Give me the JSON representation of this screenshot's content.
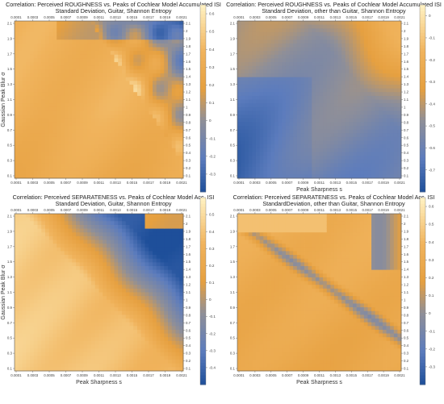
{
  "chart_data": [
    {
      "type": "heatmap",
      "title": "Correlation: Perceived ROUGHNESS vs. Peaks of Cochlear Model Accumulated ISI",
      "subtitle": "Standard Deviation, Guitar, Shannon Entropy",
      "xlabel": "",
      "ylabel": "Gaussian Peak Blur σ",
      "x_ticks": [
        "0.0001",
        "0.0003",
        "0.0005",
        "0.0007",
        "0.0009",
        "0.0011",
        "0.0013",
        "0.0015",
        "0.0017",
        "0.0019",
        "0.0021"
      ],
      "y_ticks": [
        "2.1",
        "1.9",
        "1.7",
        "1.5",
        "1.3",
        "1.1",
        "0.9",
        "0.7",
        "0.5",
        "0.3",
        "0.1"
      ],
      "y_ticks_right": [
        "2.1",
        "2",
        "1.9",
        "1.8",
        "1.7",
        "1.6",
        "1.5",
        "1.4",
        "1.3",
        "1.2",
        "1.1",
        "1",
        "0.9",
        "0.8",
        "0.7",
        "0.6",
        "0.5",
        "0.4",
        "0.3",
        "0.2",
        "0.1"
      ],
      "colorbar_ticks": [
        "0.6",
        "0.5",
        "0.4",
        "0.3",
        "0.2",
        "0.1",
        "0",
        "-0.1",
        "-0.2",
        "-0.3"
      ],
      "colorbar_range": [
        -0.4,
        0.65
      ]
    },
    {
      "type": "heatmap",
      "title": "Correlation: Perceived ROUGHNESS vs. Peaks of Cochlear Model Accumulated ISI",
      "subtitle": "Standard Deviation, other than Guitar, Shannon Entropy",
      "xlabel": "Peak Sharpness s",
      "ylabel": "",
      "x_ticks": [
        "0.0001",
        "0.0003",
        "0.0005",
        "0.0007",
        "0.0009",
        "0.0011",
        "0.0013",
        "0.0015",
        "0.0017",
        "0.0019",
        "0.0021"
      ],
      "y_ticks": [
        "2.1",
        "1.9",
        "1.7",
        "1.5",
        "1.3",
        "1.1",
        "0.9",
        "0.7",
        "0.5",
        "0.3",
        "0.1"
      ],
      "y_ticks_right": [
        "2.1",
        "2",
        "1.9",
        "1.8",
        "1.7",
        "1.6",
        "1.5",
        "1.4",
        "1.3",
        "1.2",
        "1.1",
        "1",
        "0.9",
        "0.8",
        "0.7",
        "0.6",
        "0.5",
        "0.4",
        "0.3",
        "0.2",
        "0.1"
      ],
      "colorbar_ticks": [
        "0",
        "-0.1",
        "-0.2",
        "-0.3",
        "-0.4",
        "-0.5",
        "-0.6",
        "-0.7"
      ],
      "colorbar_range": [
        -0.8,
        0.05
      ]
    },
    {
      "type": "heatmap",
      "title": "Correlation: Perceived SEPARATENESS vs. Peaks of Cochlear Model Acc. ISI",
      "subtitle": "Standard Deviation, Guitar, Shannon Entropy",
      "xlabel": "Peak Sharpness s",
      "ylabel": "Gaussian Peak Blur σ",
      "x_ticks": [
        "0.0001",
        "0.0003",
        "0.0005",
        "0.0007",
        "0.0009",
        "0.0011",
        "0.0013",
        "0.0015",
        "0.0017",
        "0.0019",
        "0.0021"
      ],
      "y_ticks": [
        "2.1",
        "1.9",
        "1.7",
        "1.5",
        "1.3",
        "1.1",
        "0.9",
        "0.7",
        "0.5",
        "0.3",
        "0.1"
      ],
      "y_ticks_right": [
        "2.1",
        "2",
        "1.9",
        "1.8",
        "1.7",
        "1.6",
        "1.5",
        "1.4",
        "1.3",
        "1.2",
        "1.1",
        "1",
        "0.9",
        "0.8",
        "0.7",
        "0.6",
        "0.5",
        "0.4",
        "0.3",
        "0.2",
        "0.1"
      ],
      "colorbar_ticks": [
        "0.5",
        "0.4",
        "0.3",
        "0.2",
        "0.1",
        "0",
        "-0.1",
        "-0.2",
        "-0.3",
        "-0.4"
      ],
      "colorbar_range": [
        -0.5,
        0.6
      ]
    },
    {
      "type": "heatmap",
      "title": "Correlation: Perceived SEPARATENESS vs. Peaks of Cochlear Model Acc. ISI",
      "subtitle": "StandardDeviation, other than Guitar, Shannon Entropy",
      "xlabel": "Peak Sharpness s",
      "ylabel": "",
      "x_ticks": [
        "0.0001",
        "0.0003",
        "0.0005",
        "0.0007",
        "0.0009",
        "0.0011",
        "0.0013",
        "0.0015",
        "0.0017",
        "0.0019",
        "0.0021"
      ],
      "y_ticks": [
        "2.1",
        "1.9",
        "1.7",
        "1.5",
        "1.3",
        "1.1",
        "0.9",
        "0.7",
        "0.5",
        "0.3",
        "0.1"
      ],
      "y_ticks_right": [
        "2.1",
        "2",
        "1.9",
        "1.8",
        "1.7",
        "1.6",
        "1.5",
        "1.4",
        "1.3",
        "1.2",
        "1.1",
        "1",
        "0.9",
        "0.8",
        "0.7",
        "0.6",
        "0.5",
        "0.4",
        "0.3",
        "0.2",
        "0.1"
      ],
      "colorbar_ticks": [
        "0.6",
        "0.5",
        "0.4",
        "0.3",
        "0.2",
        "0.1",
        "0",
        "-0.1",
        "-0.2",
        "-0.3"
      ],
      "colorbar_range": [
        -0.4,
        0.65
      ]
    }
  ],
  "colors": {
    "high": "#fff3c4",
    "mid_high": "#f0b35c",
    "mid": "#e6a040",
    "neutral": "#8f8f98",
    "low": "#5c7cbd",
    "lowest": "#1e4f9a"
  }
}
